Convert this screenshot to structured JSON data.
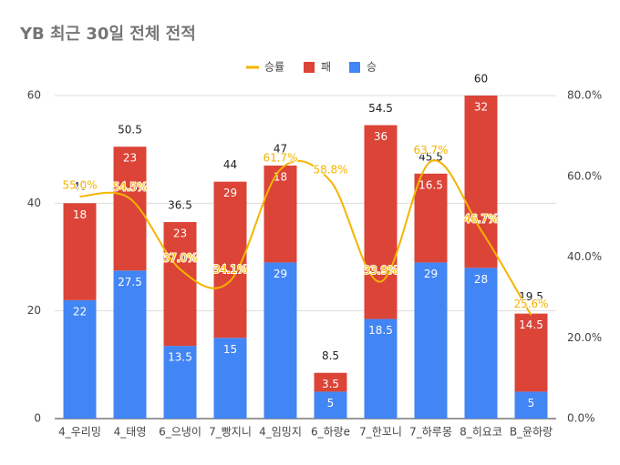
{
  "chart_data": {
    "type": "bar",
    "title": "YB 최근 30일 전체 전적",
    "categories": [
      "4_우리밍",
      "4_태영",
      "6_으냉이",
      "7_빵지니",
      "4_임밍지",
      "6_하랑e",
      "7_한꼬니",
      "7_하루몽",
      "8_히요코",
      "B_윤하랑"
    ],
    "stacked": true,
    "legend": "top",
    "series": [
      {
        "name": "승률",
        "type": "line",
        "axis": "y2",
        "color": "#f4b400",
        "values": [
          55.0,
          54.5,
          37.0,
          34.1,
          61.7,
          58.8,
          33.9,
          63.7,
          46.7,
          25.6
        ],
        "value_labels": [
          "55.0%",
          "54.5%",
          "37.0%",
          "34.1%",
          "61.7%",
          "58.8%",
          "33.9%",
          "63.7%",
          "46.7%",
          "25.6%"
        ]
      },
      {
        "name": "패",
        "color": "#db4437",
        "values": [
          18,
          23,
          23,
          29,
          18,
          3.5,
          36,
          16.5,
          32,
          14.5
        ]
      },
      {
        "name": "승",
        "color": "#4285f4",
        "values": [
          22,
          27.5,
          13.5,
          15,
          29,
          5,
          18.5,
          29,
          28,
          5
        ]
      }
    ],
    "totals": [
      40,
      50.5,
      36.5,
      44,
      47,
      8.5,
      54.5,
      45.5,
      60,
      19.5
    ],
    "ylim": [
      0,
      60
    ],
    "yticks": [
      0,
      20,
      40,
      60
    ],
    "y2lim": [
      0,
      80
    ],
    "y2ticks": [
      {
        "value": 0,
        "label": "0.0%"
      },
      {
        "value": 20,
        "label": "20.0%"
      },
      {
        "value": 40,
        "label": "40.0%"
      },
      {
        "value": 60,
        "label": "60.0%"
      },
      {
        "value": 80,
        "label": "80.0%"
      }
    ],
    "grid": true
  }
}
